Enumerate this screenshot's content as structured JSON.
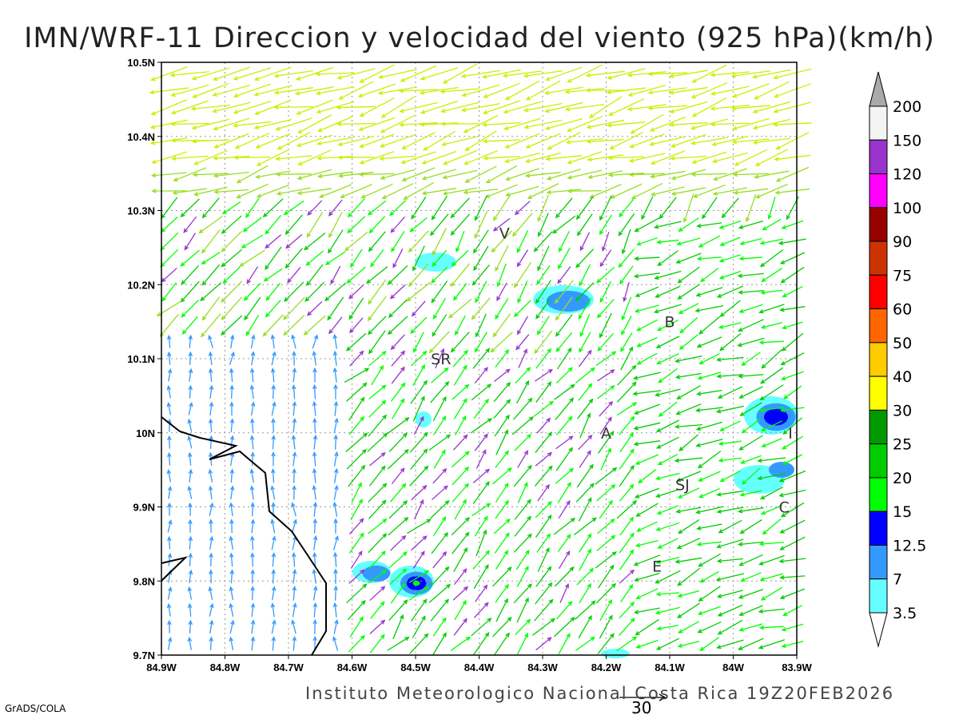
{
  "title": "IMN/WRF-11 Direccion y velocidad del viento (925 hPa)(km/h)",
  "footer": "Instituto Meteorologico Nacional Costa Rica 19Z20FEB2026",
  "software": "GrADS/COLA",
  "reference_vector": {
    "label": "30",
    "units": "km/h"
  },
  "axes": {
    "lon_ticks": [
      "84.9W",
      "84.8W",
      "84.7W",
      "84.6W",
      "84.5W",
      "84.4W",
      "84.3W",
      "84.2W",
      "84.1W",
      "84W",
      "83.9W"
    ],
    "lat_ticks": [
      "10.5N",
      "10.4N",
      "10.3N",
      "10.2N",
      "10.1N",
      "10N",
      "9.9N",
      "9.8N",
      "9.7N"
    ]
  },
  "stations": [
    {
      "label": "V",
      "lon": -84.36,
      "lat": 10.27
    },
    {
      "label": "SR",
      "lon": -84.46,
      "lat": 10.1
    },
    {
      "label": "B",
      "lon": -84.1,
      "lat": 10.15
    },
    {
      "label": "A",
      "lon": -84.2,
      "lat": 10.0
    },
    {
      "label": "SJ",
      "lon": -84.08,
      "lat": 9.93
    },
    {
      "label": "C",
      "lon": -83.92,
      "lat": 9.9
    },
    {
      "label": "E",
      "lon": -84.12,
      "lat": 9.82
    },
    {
      "label": "I",
      "lon": -83.91,
      "lat": 10.0
    }
  ],
  "colorbar": {
    "levels": [
      "200",
      "150",
      "120",
      "100",
      "90",
      "75",
      "60",
      "50",
      "40",
      "30",
      "25",
      "20",
      "15",
      "12.5",
      "7",
      "3.5"
    ],
    "colors": [
      "#f4f4f4",
      "#9933cc",
      "#ff00ff",
      "#990000",
      "#cc3300",
      "#ff0000",
      "#ff6600",
      "#ffcc00",
      "#ffff00",
      "#009900",
      "#00cc00",
      "#00ff00",
      "#0000ff",
      "#3399ff",
      "#66ffff"
    ],
    "over_color": "#aaaaaa",
    "under_color": "#ffffff"
  }
}
